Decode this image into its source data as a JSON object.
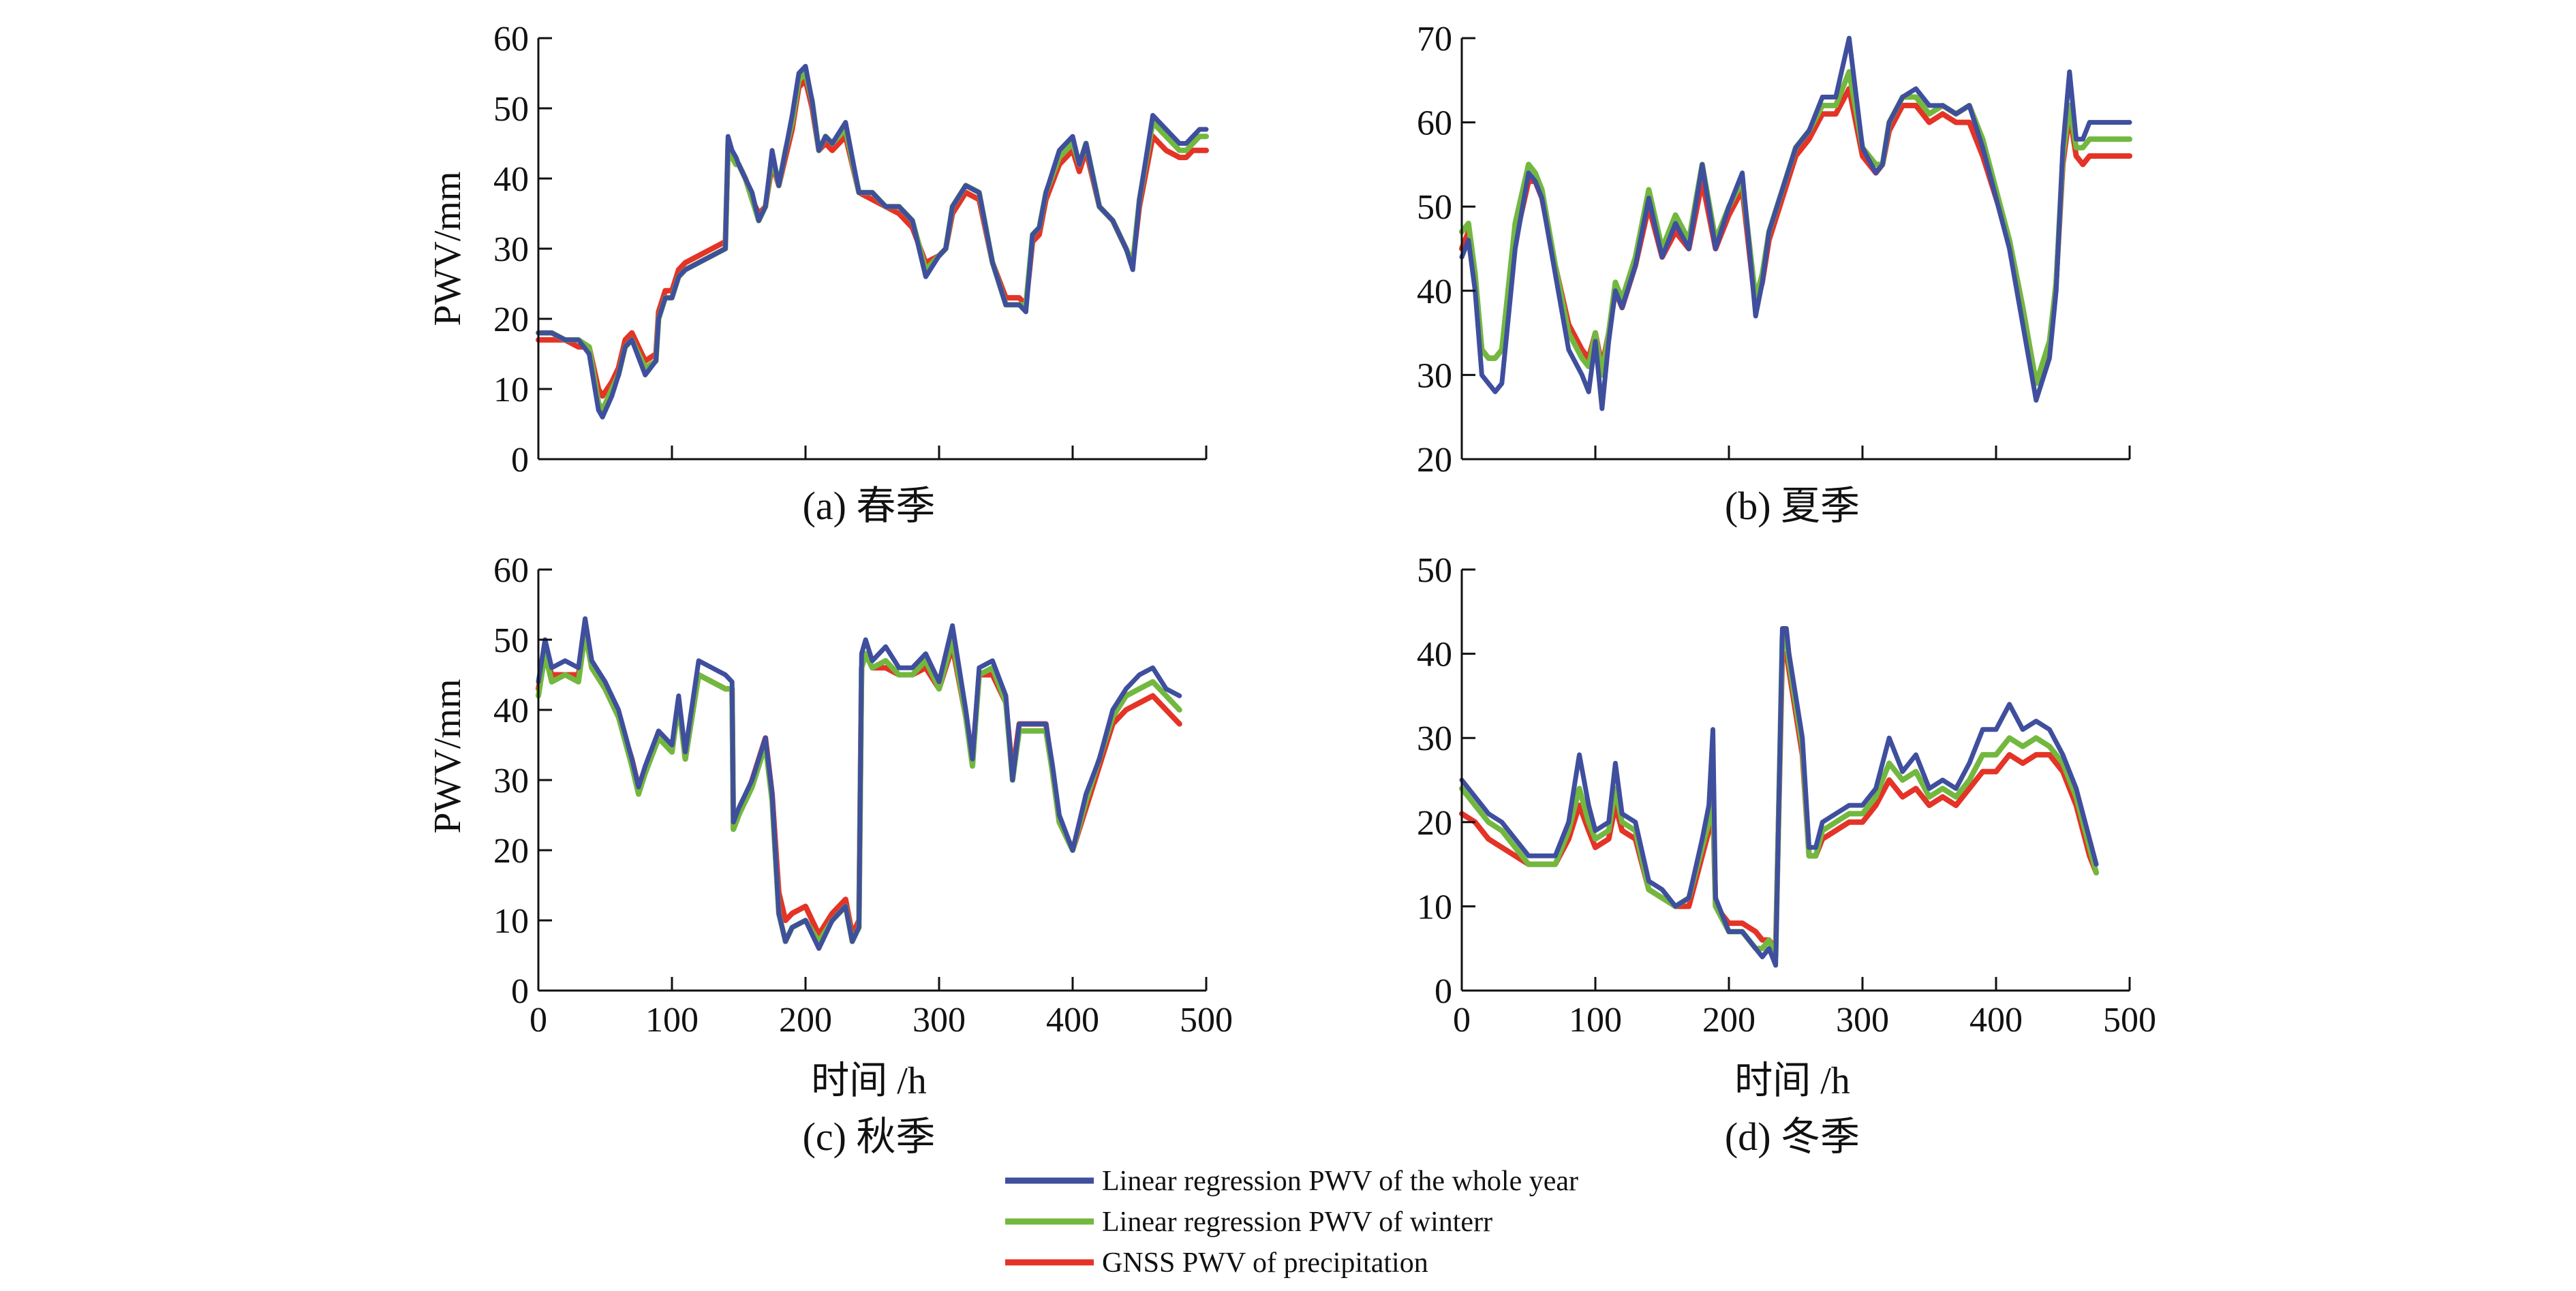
{
  "legend": [
    {
      "label": "Linear regression PWV of the whole year",
      "color": "#3f4f9e"
    },
    {
      "label": "Linear regression PWV of winterr",
      "color": "#72b83f"
    },
    {
      "label": "GNSS PWV of precipitation",
      "color": "#e43327"
    }
  ],
  "chart_data": [
    {
      "type": "line",
      "title": "(a) 春季",
      "caption": "(a) 春季",
      "xlabel": "",
      "ylabel": "PWV/mm",
      "xlim": [
        0,
        500
      ],
      "ylim": [
        0,
        60
      ],
      "yticks": [
        0,
        10,
        20,
        30,
        40,
        50,
        60
      ],
      "xticks": [
        0,
        100,
        200,
        300,
        400,
        500
      ],
      "xticklabels": [
        "",
        "",
        "",
        "",
        "",
        ""
      ],
      "x": [
        0,
        10,
        20,
        30,
        38,
        45,
        48,
        55,
        60,
        65,
        70,
        80,
        88,
        90,
        95,
        100,
        105,
        110,
        120,
        130,
        140,
        142,
        145,
        148,
        150,
        155,
        160,
        165,
        170,
        175,
        180,
        185,
        190,
        195,
        200,
        205,
        210,
        215,
        220,
        230,
        240,
        250,
        260,
        270,
        280,
        290,
        300,
        305,
        310,
        320,
        330,
        340,
        350,
        360,
        365,
        370,
        375,
        380,
        390,
        400,
        405,
        410,
        420,
        430,
        440,
        445,
        450,
        460,
        470,
        480,
        485,
        490,
        495,
        500
      ],
      "series": [
        {
          "name": "Linear regression PWV of the whole year",
          "values": [
            18,
            18,
            17,
            17,
            15,
            7,
            6,
            9,
            12,
            16,
            17,
            12,
            14,
            20,
            23,
            23,
            26,
            27,
            28,
            29,
            30,
            46,
            44,
            43,
            42,
            40,
            38,
            34,
            36,
            44,
            39,
            44,
            49,
            55,
            56,
            51,
            44,
            46,
            45,
            48,
            38,
            38,
            36,
            36,
            34,
            26,
            29,
            30,
            36,
            39,
            38,
            28,
            22,
            22,
            21,
            32,
            33,
            38,
            44,
            46,
            42,
            45,
            36,
            34,
            30,
            27,
            37,
            49,
            47,
            45,
            45,
            46,
            47,
            47
          ]
        },
        {
          "name": "Linear regression PWV of winterr",
          "values": [
            18,
            18,
            17,
            17,
            16,
            8,
            7,
            10,
            12,
            16,
            17,
            13,
            14,
            20,
            23,
            23,
            26,
            27,
            28,
            29,
            30,
            45,
            43,
            42,
            42,
            40,
            37,
            34,
            36,
            43,
            39,
            44,
            48,
            54,
            55,
            51,
            44,
            46,
            45,
            47,
            38,
            38,
            36,
            36,
            34,
            27,
            29,
            30,
            36,
            39,
            38,
            28,
            22,
            22,
            22,
            32,
            33,
            38,
            43,
            45,
            42,
            45,
            36,
            34,
            30,
            28,
            37,
            48,
            46,
            44,
            44,
            45,
            46,
            46
          ]
        },
        {
          "name": "GNSS PWV of precipitation",
          "values": [
            17,
            17,
            17,
            16,
            16,
            10,
            9,
            11,
            13,
            17,
            18,
            14,
            15,
            21,
            24,
            24,
            27,
            28,
            29,
            30,
            31,
            44,
            43,
            42,
            42,
            40,
            37,
            35,
            36,
            42,
            39,
            43,
            47,
            53,
            54,
            50,
            44,
            45,
            44,
            46,
            38,
            37,
            36,
            35,
            33,
            28,
            29,
            30,
            35,
            38,
            37,
            28,
            23,
            23,
            22,
            31,
            32,
            37,
            42,
            44,
            41,
            44,
            36,
            34,
            30,
            28,
            36,
            46,
            44,
            43,
            43,
            44,
            44,
            44
          ]
        }
      ]
    },
    {
      "type": "line",
      "title": "(b) 夏季",
      "caption": "(b) 夏季",
      "xlabel": "",
      "ylabel": "",
      "xlim": [
        0,
        500
      ],
      "ylim": [
        20,
        70
      ],
      "yticks": [
        20,
        30,
        40,
        50,
        60,
        70
      ],
      "xticks": [
        0,
        100,
        200,
        300,
        400,
        500
      ],
      "xticklabels": [
        "",
        "",
        "",
        "",
        "",
        ""
      ],
      "x": [
        0,
        5,
        10,
        15,
        20,
        25,
        30,
        40,
        50,
        55,
        60,
        70,
        80,
        90,
        95,
        100,
        105,
        110,
        115,
        120,
        130,
        140,
        150,
        160,
        170,
        180,
        190,
        200,
        210,
        220,
        225,
        230,
        240,
        250,
        260,
        270,
        280,
        290,
        300,
        310,
        315,
        320,
        330,
        340,
        350,
        360,
        370,
        380,
        390,
        400,
        410,
        420,
        430,
        440,
        445,
        450,
        455,
        460,
        465,
        470,
        475,
        480,
        485,
        490,
        495,
        500
      ],
      "series": [
        {
          "name": "Linear regression PWV of the whole year",
          "values": [
            44,
            46,
            40,
            30,
            29,
            28,
            29,
            45,
            54,
            53,
            51,
            42,
            33,
            30,
            28,
            34,
            26,
            34,
            40,
            38,
            43,
            51,
            44,
            48,
            45,
            55,
            45,
            50,
            54,
            37,
            41,
            47,
            52,
            57,
            59,
            63,
            63,
            70,
            57,
            54,
            55,
            60,
            63,
            64,
            62,
            62,
            61,
            62,
            57,
            51,
            45,
            36,
            27,
            32,
            40,
            57,
            66,
            58,
            58,
            60,
            60,
            60,
            60,
            60,
            60,
            60
          ]
        },
        {
          "name": "Linear regression PWV of winterr",
          "values": [
            47,
            48,
            42,
            33,
            32,
            32,
            33,
            48,
            55,
            54,
            52,
            43,
            35,
            32,
            31,
            35,
            30,
            35,
            41,
            39,
            44,
            52,
            45,
            49,
            46,
            55,
            46,
            50,
            53,
            39,
            42,
            47,
            52,
            57,
            59,
            62,
            62,
            66,
            57,
            55,
            55,
            60,
            63,
            63,
            61,
            62,
            61,
            62,
            58,
            52,
            46,
            38,
            29,
            34,
            41,
            56,
            62,
            57,
            57,
            58,
            58,
            58,
            58,
            58,
            58,
            58
          ]
        },
        {
          "name": "GNSS PWV of precipitation",
          "values": [
            45,
            47,
            41,
            33,
            32,
            32,
            33,
            46,
            53,
            53,
            51,
            43,
            36,
            33,
            32,
            35,
            31,
            35,
            40,
            38,
            43,
            50,
            44,
            47,
            45,
            53,
            45,
            49,
            52,
            38,
            41,
            46,
            51,
            56,
            58,
            61,
            61,
            64,
            56,
            54,
            55,
            59,
            62,
            62,
            60,
            61,
            60,
            60,
            56,
            51,
            46,
            38,
            29,
            33,
            41,
            55,
            61,
            56,
            55,
            56,
            56,
            56,
            56,
            56,
            56,
            56
          ]
        }
      ]
    },
    {
      "type": "line",
      "title": "(c) 秋季",
      "caption": "(c) 秋季",
      "xlabel": "时间 /h",
      "ylabel": "PWV/mm",
      "xlim": [
        0,
        500
      ],
      "ylim": [
        0,
        60
      ],
      "yticks": [
        0,
        10,
        20,
        30,
        40,
        50,
        60
      ],
      "xticks": [
        0,
        100,
        200,
        300,
        400,
        500
      ],
      "xticklabels": [
        "0",
        "100",
        "200",
        "300",
        "400",
        "500"
      ],
      "x": [
        0,
        5,
        10,
        20,
        30,
        35,
        40,
        50,
        60,
        70,
        75,
        80,
        90,
        100,
        105,
        110,
        120,
        130,
        140,
        145,
        146,
        150,
        160,
        170,
        175,
        180,
        185,
        190,
        200,
        210,
        220,
        230,
        235,
        240,
        242,
        245,
        250,
        260,
        270,
        280,
        290,
        300,
        310,
        320,
        325,
        330,
        340,
        350,
        355,
        360,
        370,
        380,
        385,
        390,
        400,
        410,
        420,
        430,
        440,
        450,
        460,
        470,
        480
      ],
      "series": [
        {
          "name": "Linear regression PWV of the whole year",
          "values": [
            44,
            50,
            46,
            47,
            46,
            53,
            47,
            44,
            40,
            33,
            29,
            32,
            37,
            35,
            42,
            34,
            47,
            46,
            45,
            44,
            24,
            26,
            30,
            36,
            28,
            11,
            7,
            9,
            10,
            6,
            10,
            12,
            7,
            9,
            48,
            50,
            47,
            49,
            46,
            46,
            48,
            44,
            52,
            40,
            33,
            46,
            47,
            42,
            30,
            38,
            38,
            38,
            32,
            25,
            20,
            28,
            33,
            40,
            43,
            45,
            46,
            43,
            42
          ]
        },
        {
          "name": "Linear regression PWV of winterr",
          "values": [
            42,
            48,
            44,
            45,
            44,
            51,
            46,
            43,
            39,
            32,
            28,
            31,
            36,
            34,
            41,
            33,
            45,
            44,
            43,
            43,
            23,
            25,
            29,
            35,
            27,
            11,
            7,
            9,
            10,
            7,
            10,
            12,
            7,
            9,
            46,
            48,
            46,
            47,
            45,
            45,
            47,
            43,
            50,
            39,
            32,
            45,
            46,
            41,
            30,
            37,
            37,
            37,
            31,
            24,
            20,
            27,
            33,
            39,
            42,
            43,
            44,
            42,
            40
          ]
        },
        {
          "name": "GNSS PWV of precipitation",
          "values": [
            43,
            48,
            45,
            45,
            45,
            51,
            46,
            43,
            39,
            33,
            29,
            31,
            36,
            34,
            41,
            33,
            45,
            44,
            43,
            43,
            23,
            25,
            30,
            36,
            28,
            14,
            10,
            11,
            12,
            8,
            11,
            13,
            8,
            10,
            46,
            48,
            46,
            46,
            45,
            45,
            46,
            43,
            49,
            39,
            33,
            45,
            45,
            41,
            31,
            38,
            38,
            38,
            31,
            24,
            20,
            26,
            32,
            38,
            40,
            41,
            42,
            40,
            38
          ]
        }
      ]
    },
    {
      "type": "line",
      "title": "(d) 冬季",
      "caption": "(d) 冬季",
      "xlabel": "时间 /h",
      "ylabel": "",
      "xlim": [
        0,
        500
      ],
      "ylim": [
        0,
        50
      ],
      "yticks": [
        0,
        10,
        20,
        30,
        40,
        50
      ],
      "xticks": [
        0,
        100,
        200,
        300,
        400,
        500
      ],
      "xticklabels": [
        "0",
        "100",
        "200",
        "300",
        "400",
        "500"
      ],
      "x": [
        0,
        10,
        20,
        30,
        40,
        50,
        60,
        70,
        80,
        88,
        95,
        100,
        110,
        115,
        120,
        130,
        140,
        150,
        160,
        170,
        180,
        185,
        188,
        190,
        200,
        210,
        220,
        225,
        230,
        235,
        240,
        243,
        245,
        250,
        255,
        260,
        265,
        270,
        280,
        290,
        300,
        310,
        320,
        330,
        340,
        350,
        360,
        370,
        380,
        390,
        400,
        410,
        420,
        430,
        440,
        450,
        460,
        470,
        475
      ],
      "series": [
        {
          "name": "Linear regression PWV of the whole year",
          "values": [
            25,
            23,
            21,
            20,
            18,
            16,
            16,
            16,
            20,
            28,
            22,
            19,
            20,
            27,
            21,
            20,
            13,
            12,
            10,
            11,
            18,
            22,
            31,
            11,
            7,
            7,
            5,
            4,
            5,
            3,
            43,
            43,
            40,
            35,
            30,
            17,
            17,
            20,
            21,
            22,
            22,
            24,
            30,
            26,
            28,
            24,
            25,
            24,
            27,
            31,
            31,
            34,
            31,
            32,
            31,
            28,
            24,
            18,
            15
          ]
        },
        {
          "name": "Linear regression PWV of winterr",
          "values": [
            24,
            22,
            20,
            19,
            17,
            15,
            15,
            15,
            19,
            24,
            20,
            18,
            19,
            24,
            20,
            19,
            12,
            11,
            10,
            11,
            17,
            20,
            24,
            10,
            7,
            7,
            5,
            5,
            6,
            4,
            42,
            42,
            39,
            34,
            29,
            16,
            16,
            19,
            20,
            21,
            21,
            23,
            27,
            25,
            26,
            23,
            24,
            23,
            25,
            28,
            28,
            30,
            29,
            30,
            29,
            27,
            23,
            17,
            14
          ]
        },
        {
          "name": "GNSS PWV of precipitation",
          "values": [
            21,
            20,
            18,
            17,
            16,
            15,
            15,
            15,
            18,
            22,
            19,
            17,
            18,
            22,
            19,
            18,
            12,
            11,
            10,
            10,
            16,
            19,
            22,
            10,
            8,
            8,
            7,
            6,
            6,
            5,
            40,
            40,
            38,
            33,
            28,
            16,
            16,
            18,
            19,
            20,
            20,
            22,
            25,
            23,
            24,
            22,
            23,
            22,
            24,
            26,
            26,
            28,
            27,
            28,
            28,
            26,
            22,
            16,
            14
          ]
        }
      ]
    }
  ]
}
